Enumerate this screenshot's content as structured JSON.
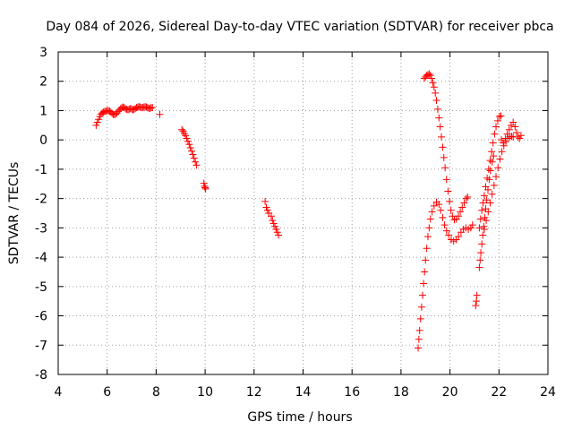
{
  "chart_data": {
    "type": "scatter",
    "title": "Day 084 of 2026, Sidereal Day-to-day VTEC variation (SDTVAR) for receiver pbca",
    "xlabel": "GPS time / hours",
    "ylabel": "SDTVAR / TECUs",
    "xlim": [
      4,
      24
    ],
    "ylim": [
      -8,
      3
    ],
    "xticks": [
      4,
      6,
      8,
      10,
      12,
      14,
      16,
      18,
      20,
      22,
      24
    ],
    "yticks": [
      -8,
      -7,
      -6,
      -5,
      -4,
      -3,
      -2,
      -1,
      0,
      1,
      2,
      3
    ],
    "grid": true,
    "marker": "+",
    "color": "#ff0000",
    "series": [
      {
        "points": [
          [
            5.55,
            0.5
          ],
          [
            5.6,
            0.6
          ],
          [
            5.65,
            0.7
          ],
          [
            5.7,
            0.8
          ],
          [
            5.75,
            0.88
          ],
          [
            5.8,
            0.92
          ],
          [
            5.85,
            0.95
          ],
          [
            5.9,
            0.97
          ],
          [
            5.95,
            0.98
          ],
          [
            6.0,
            1.0
          ],
          [
            6.05,
            1.0
          ],
          [
            6.1,
            0.98
          ],
          [
            6.15,
            0.95
          ],
          [
            6.2,
            0.9
          ],
          [
            6.25,
            0.87
          ],
          [
            6.3,
            0.86
          ],
          [
            6.35,
            0.88
          ],
          [
            6.4,
            0.92
          ],
          [
            6.45,
            0.97
          ],
          [
            6.5,
            1.02
          ],
          [
            6.55,
            1.07
          ],
          [
            6.6,
            1.1
          ],
          [
            6.65,
            1.12
          ],
          [
            6.7,
            1.1
          ],
          [
            6.75,
            1.06
          ],
          [
            6.8,
            1.04
          ],
          [
            6.85,
            1.03
          ],
          [
            6.9,
            1.05
          ],
          [
            6.95,
            1.07
          ],
          [
            7.0,
            1.05
          ],
          [
            7.05,
            1.03
          ],
          [
            7.1,
            1.04
          ],
          [
            7.15,
            1.07
          ],
          [
            7.2,
            1.1
          ],
          [
            7.25,
            1.12
          ],
          [
            7.3,
            1.13
          ],
          [
            7.35,
            1.12
          ],
          [
            7.4,
            1.1
          ],
          [
            7.45,
            1.1
          ],
          [
            7.5,
            1.12
          ],
          [
            7.55,
            1.13
          ],
          [
            7.6,
            1.12
          ],
          [
            7.65,
            1.1
          ],
          [
            7.7,
            1.08
          ],
          [
            7.75,
            1.08
          ],
          [
            7.8,
            1.1
          ],
          [
            7.85,
            1.1
          ],
          [
            8.15,
            0.87
          ],
          [
            9.05,
            0.35
          ],
          [
            9.1,
            0.3
          ],
          [
            9.15,
            0.22
          ],
          [
            9.2,
            0.15
          ],
          [
            9.25,
            0.05
          ],
          [
            9.3,
            -0.05
          ],
          [
            9.35,
            -0.15
          ],
          [
            9.4,
            -0.27
          ],
          [
            9.45,
            -0.38
          ],
          [
            9.5,
            -0.5
          ],
          [
            9.55,
            -0.62
          ],
          [
            9.6,
            -0.75
          ],
          [
            9.65,
            -0.86
          ],
          [
            9.95,
            -1.48
          ],
          [
            9.98,
            -1.58
          ],
          [
            10.0,
            -1.63
          ],
          [
            10.02,
            -1.67
          ],
          [
            12.45,
            -2.1
          ],
          [
            12.5,
            -2.3
          ],
          [
            12.55,
            -2.4
          ],
          [
            12.6,
            -2.5
          ],
          [
            12.7,
            -2.6
          ],
          [
            12.75,
            -2.75
          ],
          [
            12.8,
            -2.85
          ],
          [
            12.85,
            -2.95
          ],
          [
            12.9,
            -3.05
          ],
          [
            12.95,
            -3.15
          ],
          [
            13.0,
            -3.25
          ],
          [
            18.7,
            -7.1
          ],
          [
            18.73,
            -6.8
          ],
          [
            18.76,
            -6.5
          ],
          [
            18.8,
            -6.1
          ],
          [
            18.84,
            -5.7
          ],
          [
            18.88,
            -5.3
          ],
          [
            18.92,
            -4.9
          ],
          [
            18.96,
            -4.5
          ],
          [
            19.0,
            -4.1
          ],
          [
            19.05,
            -3.7
          ],
          [
            19.1,
            -3.3
          ],
          [
            19.15,
            -3.0
          ],
          [
            19.2,
            -2.7
          ],
          [
            19.27,
            -2.45
          ],
          [
            19.35,
            -2.25
          ],
          [
            19.45,
            -2.12
          ],
          [
            19.55,
            -2.2
          ],
          [
            19.62,
            -2.4
          ],
          [
            19.7,
            -2.65
          ],
          [
            19.78,
            -2.9
          ],
          [
            19.86,
            -3.1
          ],
          [
            19.95,
            -3.25
          ],
          [
            20.05,
            -3.4
          ],
          [
            20.15,
            -3.45
          ],
          [
            20.25,
            -3.4
          ],
          [
            20.35,
            -3.3
          ],
          [
            20.45,
            -3.15
          ],
          [
            20.55,
            -3.05
          ],
          [
            20.65,
            -3.0
          ],
          [
            20.75,
            -3.05
          ],
          [
            20.85,
            -3.0
          ],
          [
            20.92,
            -2.9
          ],
          [
            18.95,
            2.1
          ],
          [
            19.0,
            2.15
          ],
          [
            19.05,
            2.2
          ],
          [
            19.1,
            2.22
          ],
          [
            19.15,
            2.25
          ],
          [
            19.2,
            2.2
          ],
          [
            19.25,
            2.1
          ],
          [
            19.3,
            1.95
          ],
          [
            19.35,
            1.8
          ],
          [
            19.4,
            1.6
          ],
          [
            19.45,
            1.35
          ],
          [
            19.5,
            1.05
          ],
          [
            19.55,
            0.75
          ],
          [
            19.6,
            0.45
          ],
          [
            19.65,
            0.1
          ],
          [
            19.7,
            -0.25
          ],
          [
            19.75,
            -0.6
          ],
          [
            19.8,
            -0.95
          ],
          [
            19.86,
            -1.35
          ],
          [
            19.92,
            -1.75
          ],
          [
            19.98,
            -2.1
          ],
          [
            20.04,
            -2.4
          ],
          [
            20.1,
            -2.6
          ],
          [
            20.18,
            -2.72
          ],
          [
            20.26,
            -2.7
          ],
          [
            20.34,
            -2.6
          ],
          [
            20.42,
            -2.45
          ],
          [
            20.5,
            -2.3
          ],
          [
            20.58,
            -2.15
          ],
          [
            20.66,
            -2.0
          ],
          [
            20.72,
            -1.95
          ],
          [
            21.05,
            -5.65
          ],
          [
            21.08,
            -5.5
          ],
          [
            21.1,
            -5.3
          ],
          [
            21.2,
            -4.35
          ],
          [
            21.23,
            -4.1
          ],
          [
            21.26,
            -3.85
          ],
          [
            21.3,
            -3.55
          ],
          [
            21.34,
            -3.25
          ],
          [
            21.38,
            -2.95
          ],
          [
            21.42,
            -2.65
          ],
          [
            21.46,
            -2.35
          ],
          [
            21.5,
            -2.05
          ],
          [
            21.55,
            -1.7
          ],
          [
            21.6,
            -1.35
          ],
          [
            21.65,
            -1.05
          ],
          [
            21.72,
            -0.75
          ],
          [
            21.78,
            -0.55
          ],
          [
            21.2,
            -3.0
          ],
          [
            21.25,
            -2.7
          ],
          [
            21.3,
            -2.4
          ],
          [
            21.35,
            -2.15
          ],
          [
            21.4,
            -1.9
          ],
          [
            21.46,
            -1.6
          ],
          [
            21.52,
            -1.3
          ],
          [
            21.58,
            -1.0
          ],
          [
            21.64,
            -0.7
          ],
          [
            21.7,
            -0.4
          ],
          [
            21.76,
            -0.1
          ],
          [
            21.82,
            0.2
          ],
          [
            21.88,
            0.45
          ],
          [
            21.95,
            0.65
          ],
          [
            22.02,
            0.8
          ],
          [
            22.08,
            0.82
          ],
          [
            21.4,
            -3.05
          ],
          [
            21.48,
            -2.75
          ],
          [
            21.56,
            -2.45
          ],
          [
            21.64,
            -2.15
          ],
          [
            21.72,
            -1.85
          ],
          [
            21.8,
            -1.55
          ],
          [
            21.88,
            -1.25
          ],
          [
            21.96,
            -0.95
          ],
          [
            22.04,
            -0.65
          ],
          [
            22.12,
            -0.4
          ],
          [
            22.2,
            -0.2
          ],
          [
            22.28,
            -0.05
          ],
          [
            22.36,
            0.05
          ],
          [
            22.44,
            0.1
          ],
          [
            22.52,
            0.12
          ],
          [
            22.58,
            0.1
          ],
          [
            22.1,
            0.0
          ],
          [
            22.18,
            -0.1
          ],
          [
            22.26,
            0.05
          ],
          [
            22.34,
            0.2
          ],
          [
            22.42,
            0.35
          ],
          [
            22.5,
            0.5
          ],
          [
            22.58,
            0.6
          ],
          [
            22.66,
            0.45
          ],
          [
            22.72,
            0.25
          ],
          [
            22.78,
            0.1
          ],
          [
            22.84,
            0.05
          ],
          [
            22.9,
            0.15
          ]
        ]
      }
    ]
  }
}
